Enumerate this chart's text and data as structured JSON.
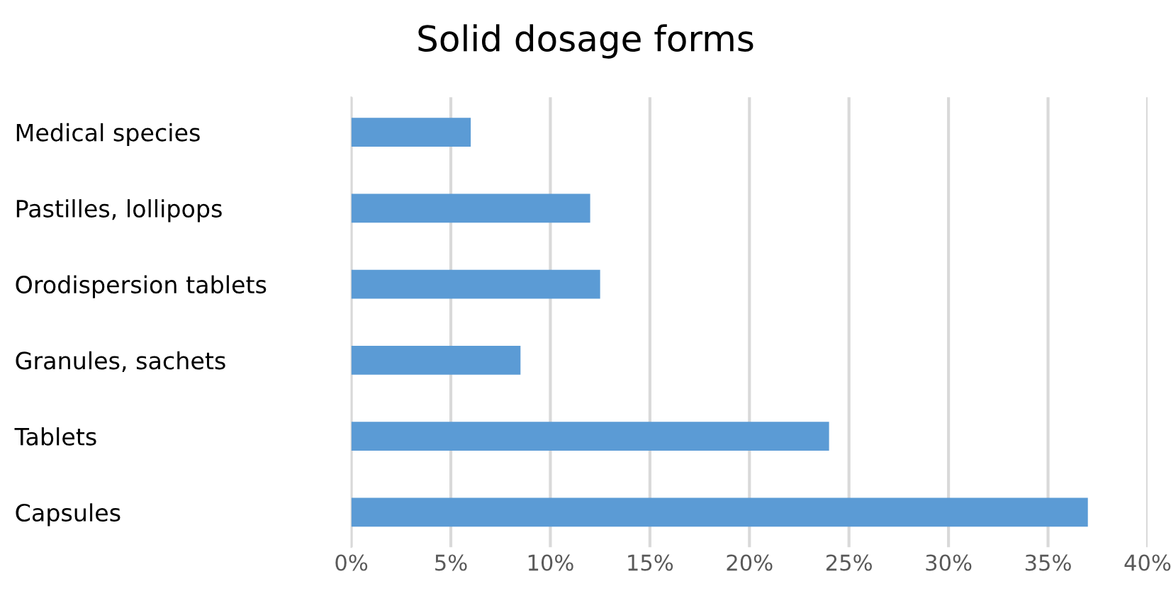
{
  "chart_data": {
    "type": "bar",
    "orientation": "horizontal",
    "title": "Solid dosage forms",
    "categories": [
      "Medical species",
      "Pastilles, lollipops",
      "Orodispersion tablets",
      "Granules, sachets",
      "Tablets",
      "Capsules"
    ],
    "values": [
      6,
      12,
      12.5,
      8.5,
      24,
      37
    ],
    "color": "#5b9bd5",
    "xlim": [
      0,
      40
    ],
    "xticks": [
      {
        "value": 0,
        "label": "0%"
      },
      {
        "value": 5,
        "label": "5%"
      },
      {
        "value": 10,
        "label": "10%"
      },
      {
        "value": 15,
        "label": "15%"
      },
      {
        "value": 20,
        "label": "20%"
      },
      {
        "value": 25,
        "label": "25%"
      },
      {
        "value": 30,
        "label": "30%"
      },
      {
        "value": 35,
        "label": "35%"
      },
      {
        "value": 40,
        "label": "40%"
      }
    ],
    "grid": "x"
  }
}
